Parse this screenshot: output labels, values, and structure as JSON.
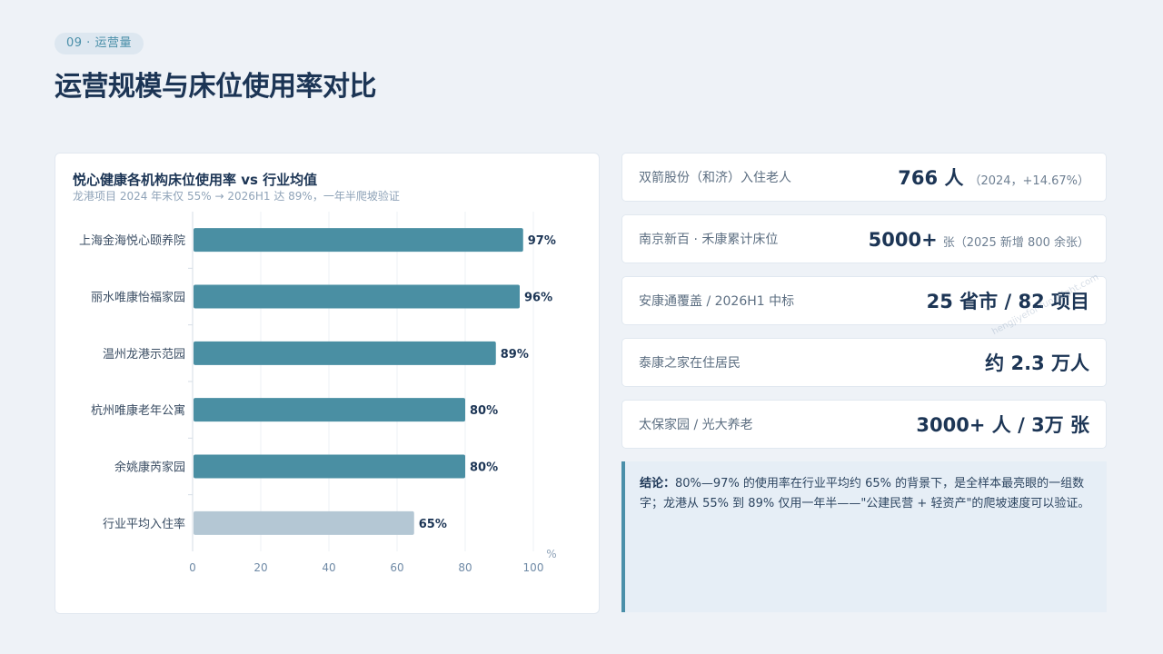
{
  "header": {
    "tag": "09 · 运营量",
    "title": "运营规模与床位使用率对比"
  },
  "chart_data": {
    "type": "bar",
    "orientation": "horizontal",
    "title": "悦心健康各机构床位使用率 vs 行业均值",
    "subtitle": "龙港项目 2024 年末仅 55% → 2026H1 达 89%，一年半爬坡验证",
    "categories": [
      "上海金海悦心颐养院",
      "丽水唯康怡福家园",
      "温州龙港示范园",
      "杭州唯康老年公寓",
      "余姚康芮家园",
      "行业平均入住率"
    ],
    "values": [
      97,
      96,
      89,
      80,
      80,
      65
    ],
    "value_labels": [
      "97%",
      "96%",
      "89%",
      "80%",
      "80%",
      "65%"
    ],
    "unit": "%",
    "xlim": [
      0,
      100
    ],
    "xticks": [
      0,
      20,
      40,
      60,
      80,
      100
    ],
    "xtick_labels": [
      "0",
      "20",
      "40",
      "60",
      "80",
      "100"
    ],
    "grid": true,
    "colors": {
      "bar": "#4a8fa3",
      "benchmark": "#b4c7d4"
    }
  },
  "stats": [
    {
      "label": "双箭股份（和济）入住老人",
      "value": "766 人",
      "note": "（2024，+14.67%）"
    },
    {
      "label": "南京新百 · 禾康累计床位",
      "value": "5000+",
      "note": "张（2025 新增 800 余张）"
    },
    {
      "label": "安康通覆盖 / 2026H1 中标",
      "value": "25 省市 / 82 项目",
      "note": ""
    },
    {
      "label": "泰康之家在住居民",
      "value": "约 2.3 万人",
      "note": ""
    },
    {
      "label": "太保家园 / 光大养老",
      "value": "3000+ 人 / 3万 张",
      "note": ""
    }
  ],
  "conclusion": {
    "label": "结论：",
    "text": "80%—97% 的使用率在行业平均约 65% 的背景下，是全样本最亮眼的一组数字；龙港从 55% 到 89% 仅用一年半——\"公建民营 + 轻资产\"的爬坡速度可以验证。"
  },
  "watermark": "hengjiyefor-fundsight.com"
}
